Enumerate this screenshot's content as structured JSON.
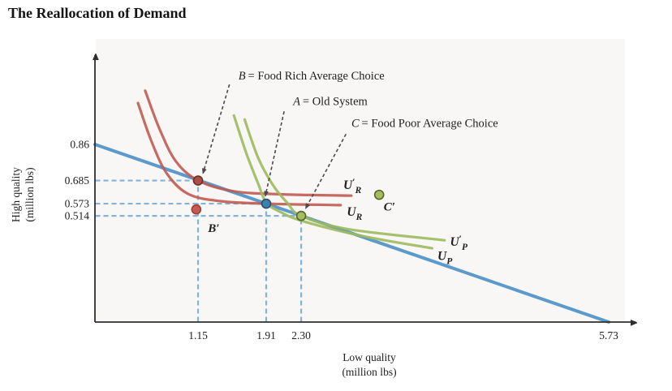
{
  "title": "The Reallocation of Demand",
  "chart_data": {
    "type": "line",
    "title": "The Reallocation of Demand",
    "x_axis": {
      "title_lines": [
        "Low quality",
        "(million lbs)"
      ],
      "ticks": [
        {
          "value": 1.15,
          "label": "1.15"
        },
        {
          "value": 1.91,
          "label": "1.91"
        },
        {
          "value": 2.3,
          "label": "2.30"
        },
        {
          "value": 5.73,
          "label": "5.73"
        }
      ],
      "range": [
        0,
        6.05
      ]
    },
    "y_axis": {
      "title_lines": [
        "High quality",
        "(million lbs)"
      ],
      "ticks": [
        {
          "value": 0.86,
          "label": "0.86"
        },
        {
          "value": 0.685,
          "label": "0.685"
        },
        {
          "value": 0.573,
          "label": "0.573"
        },
        {
          "value": 0.514,
          "label": "0.514"
        }
      ],
      "range": [
        0,
        1.3
      ]
    },
    "colors": {
      "budget": "#4e93c8",
      "rich_curves": "#c05a52",
      "poor_curves": "#9cb95d",
      "guides": "#85b3d8",
      "annotation_arrow": "#4a4a4a",
      "axis": "#2e2e2e"
    },
    "budget_line": {
      "name": "budget-line",
      "points": [
        [
          0,
          0.86
        ],
        [
          5.73,
          0
        ]
      ]
    },
    "indifference_curves": [
      {
        "name": "curve-U-prime-R",
        "group": "rich_curves",
        "label": {
          "main": "U",
          "prime": true,
          "sub": "R"
        },
        "label_pos": [
          2.77,
          0.645
        ],
        "points": [
          [
            0.56,
            1.12
          ],
          [
            0.72,
            0.935
          ],
          [
            0.9,
            0.78
          ],
          [
            1.15,
            0.685
          ],
          [
            1.55,
            0.633
          ],
          [
            2.1,
            0.618
          ],
          [
            2.86,
            0.612
          ]
        ]
      },
      {
        "name": "curve-U-R",
        "group": "rich_curves",
        "label": {
          "main": "U",
          "prime": false,
          "sub": "R"
        },
        "label_pos": [
          2.81,
          0.515
        ],
        "points": [
          [
            0.48,
            1.06
          ],
          [
            0.63,
            0.875
          ],
          [
            0.8,
            0.72
          ],
          [
            1.04,
            0.62
          ],
          [
            1.4,
            0.585
          ],
          [
            1.91,
            0.573
          ],
          [
            2.74,
            0.566
          ]
        ]
      },
      {
        "name": "curve-U-prime-P",
        "group": "poor_curves",
        "label": {
          "main": "U",
          "prime": true,
          "sub": "P"
        },
        "label_pos": [
          3.96,
          0.37
        ],
        "points": [
          [
            1.67,
            0.98
          ],
          [
            1.82,
            0.795
          ],
          [
            1.99,
            0.66
          ],
          [
            2.15,
            0.575
          ],
          [
            2.3,
            0.514
          ],
          [
            2.82,
            0.45
          ],
          [
            3.9,
            0.396
          ]
        ]
      },
      {
        "name": "curve-U-P",
        "group": "poor_curves",
        "label": {
          "main": "U",
          "prime": false,
          "sub": "P"
        },
        "label_pos": [
          3.82,
          0.3
        ],
        "points": [
          [
            1.55,
            1.0
          ],
          [
            1.69,
            0.815
          ],
          [
            1.82,
            0.67
          ],
          [
            1.91,
            0.578
          ],
          [
            2.06,
            0.535
          ],
          [
            2.32,
            0.488
          ],
          [
            3.0,
            0.415
          ],
          [
            3.76,
            0.357
          ]
        ]
      }
    ],
    "points": [
      {
        "id": "B",
        "x": 1.15,
        "y": 0.685,
        "fill": "#ad4f45",
        "stroke": "#6b2f2a",
        "label": null
      },
      {
        "id": "A",
        "x": 1.91,
        "y": 0.573,
        "fill": "#3f7fae",
        "stroke": "#23506e",
        "label": null
      },
      {
        "id": "C",
        "x": 2.3,
        "y": 0.514,
        "fill": "#a4bd5e",
        "stroke": "#55652c",
        "label": null
      },
      {
        "id": "B-prime",
        "x": 1.13,
        "y": 0.545,
        "fill": "#c45a50",
        "stroke": "#a03c33",
        "label": "B′",
        "label_pos": [
          1.26,
          0.435
        ]
      },
      {
        "id": "C-prime",
        "x": 3.17,
        "y": 0.616,
        "fill": "#a4bd5e",
        "stroke": "#55652c",
        "label": "C′",
        "label_pos": [
          3.22,
          0.54
        ]
      }
    ],
    "annotations": [
      {
        "id": "annotation-B",
        "letter": "B",
        "text": "= Food Rich Average Choice",
        "pos": [
          1.6,
          1.175
        ],
        "arrow_from": [
          1.5,
          1.15
        ],
        "arrow_to": [
          1.205,
          0.72
        ]
      },
      {
        "id": "annotation-A",
        "letter": "A",
        "text": "= Old System",
        "pos": [
          2.21,
          1.05
        ],
        "arrow_from": [
          2.11,
          1.02
        ],
        "arrow_to": [
          1.9,
          0.61
        ]
      },
      {
        "id": "annotation-C",
        "letter": "C",
        "text": "= Food Poor Average Choice",
        "pos": [
          2.86,
          0.945
        ],
        "arrow_from": [
          2.8,
          0.91
        ],
        "arrow_to": [
          2.35,
          0.55
        ]
      }
    ],
    "guides": {
      "horizontal": [
        {
          "y": 0.685,
          "x_to": 1.15
        },
        {
          "y": 0.573,
          "x_to": 1.91
        },
        {
          "y": 0.514,
          "x_to": 2.3
        }
      ],
      "vertical": [
        {
          "x": 1.15,
          "y_to": 0.685
        },
        {
          "x": 1.91,
          "y_to": 0.573
        },
        {
          "x": 2.3,
          "y_to": 0.514
        }
      ]
    }
  }
}
